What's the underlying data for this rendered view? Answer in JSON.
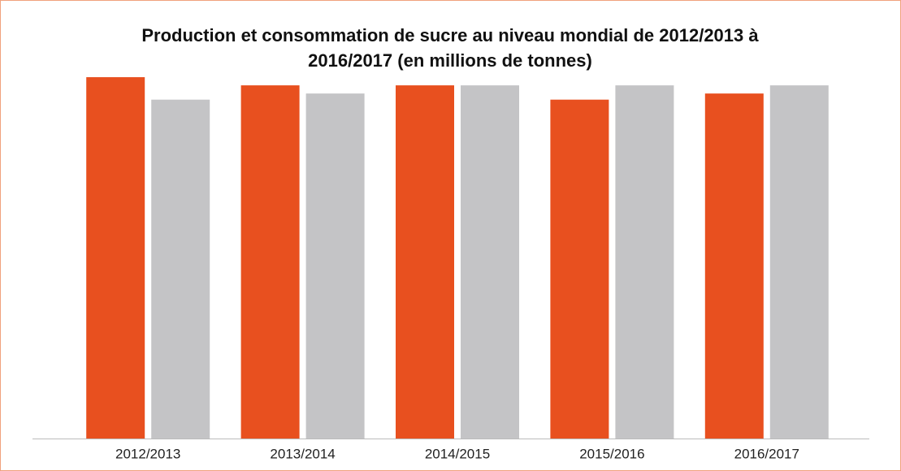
{
  "chart_data": {
    "type": "bar",
    "title": "Production et consommation de sucre au niveau mondial de 2012/2013 à 2016/2017 (en millions de tonnes)",
    "categories": [
      "2012/2013",
      "2013/2014",
      "2014/2015",
      "2015/2016",
      "2016/2017"
    ],
    "series": [
      {
        "color": "#e8501f",
        "values": [
          177,
          173,
          173,
          166,
          169
        ]
      },
      {
        "color": "#c4c4c6",
        "values": [
          166,
          169,
          173,
          173,
          173
        ]
      }
    ],
    "ylim": [
      0,
      180
    ]
  }
}
